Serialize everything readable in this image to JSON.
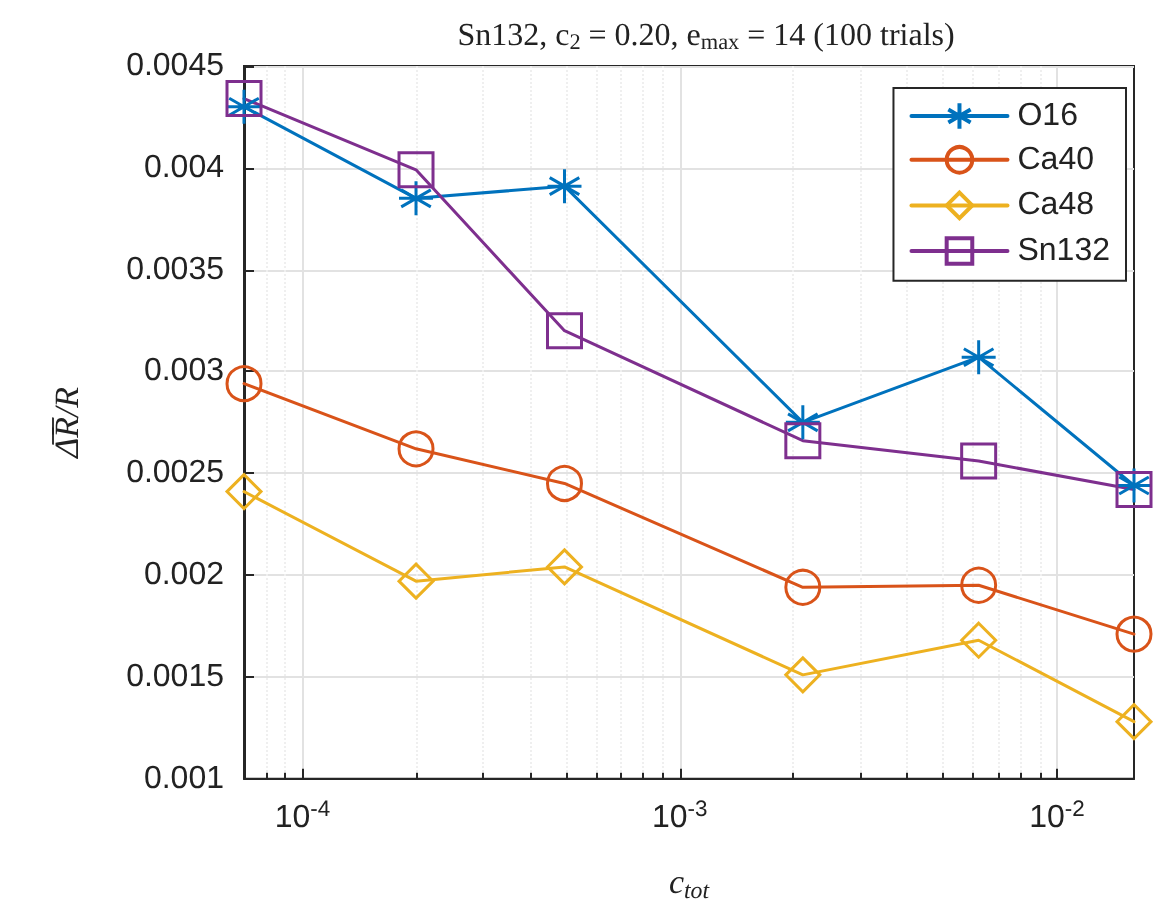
{
  "chart_data": {
    "type": "line",
    "title": "Sn132, c$_{2}$ = 0.20, e$_{max}$ = 14 (100 trials)",
    "xlabel": "c$_{tot}$",
    "ylabel": "Δ̅R̅/R",
    "x": [
      7e-05,
      0.0002,
      0.000495,
      0.00212,
      0.0062,
      0.016
    ],
    "series": [
      {
        "name": "O16",
        "color": "#0072bd",
        "marker": "cross",
        "values": [
          0.0043,
          0.00385,
          0.00391,
          0.00275,
          0.00307,
          0.00244
        ]
      },
      {
        "name": "Ca40",
        "color": "#d95319",
        "marker": "circle",
        "values": [
          0.00294,
          0.00262,
          0.00245,
          0.00194,
          0.00195,
          0.00171
        ]
      },
      {
        "name": "Ca48",
        "color": "#edb120",
        "marker": "diamond",
        "values": [
          0.00241,
          0.00197,
          0.00204,
          0.00151,
          0.00168,
          0.00128
        ]
      },
      {
        "name": "Sn132",
        "color": "#7e2f8e",
        "marker": "square",
        "values": [
          0.00434,
          0.00399,
          0.0032,
          0.00266,
          0.00256,
          0.00242
        ]
      }
    ],
    "log": "x",
    "xlim": [
      7e-05,
      0.016
    ],
    "xticks": [
      {
        "value": 0.0001,
        "label": "10$^{-4}$"
      },
      {
        "value": 0.001,
        "label": "10$^{-3}$"
      },
      {
        "value": 0.01,
        "label": "10$^{-2}$"
      }
    ],
    "ylim": [
      0.001,
      0.0045
    ],
    "yticks": [
      0.001,
      0.0015,
      0.002,
      0.0025,
      0.003,
      0.0035,
      0.004,
      0.0045
    ],
    "grid": true,
    "legend": "top right",
    "line_style": "solid"
  }
}
